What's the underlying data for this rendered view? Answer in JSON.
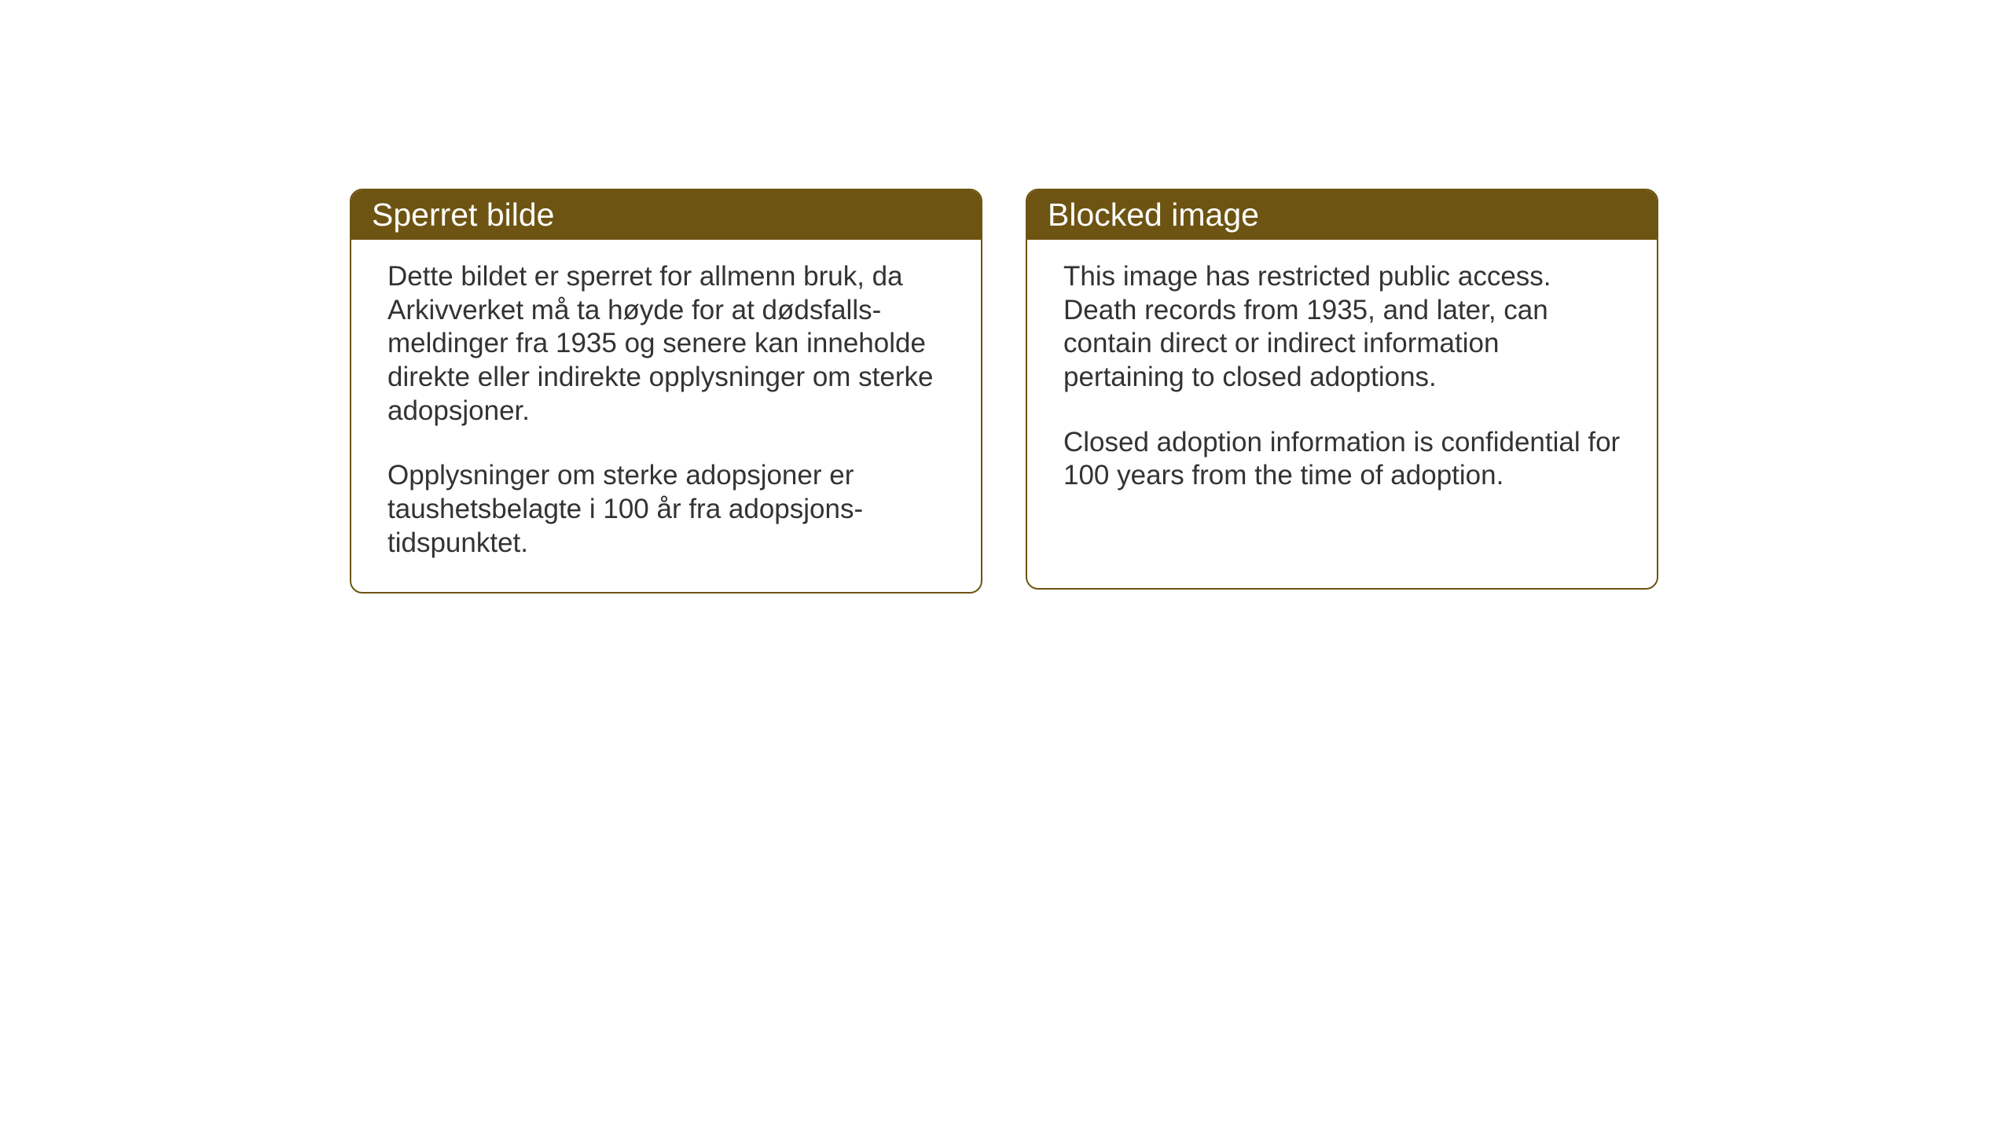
{
  "cards": {
    "norwegian": {
      "title": "Sperret bilde",
      "paragraph1": "Dette bildet er sperret for allmenn bruk, da Arkivverket må ta høyde for at dødsfalls-meldinger fra 1935 og senere kan inneholde direkte eller indirekte opplysninger om sterke adopsjoner.",
      "paragraph2": "Opplysninger om sterke adopsjoner er taushetsbelagte i 100 år fra adopsjons-tidspunktet."
    },
    "english": {
      "title": "Blocked image",
      "paragraph1": "This image has restricted public access. Death records from 1935, and later, can contain direct or indirect information pertaining to closed adoptions.",
      "paragraph2": "Closed adoption information is confidential for 100 years from the time of adoption."
    }
  },
  "styling": {
    "header_background": "#6e5413",
    "header_text_color": "#ffffff",
    "border_color": "#6e5413",
    "body_text_color": "#333333",
    "background_color": "#ffffff",
    "border_radius": 16,
    "title_fontsize": 41,
    "body_fontsize": 35
  }
}
